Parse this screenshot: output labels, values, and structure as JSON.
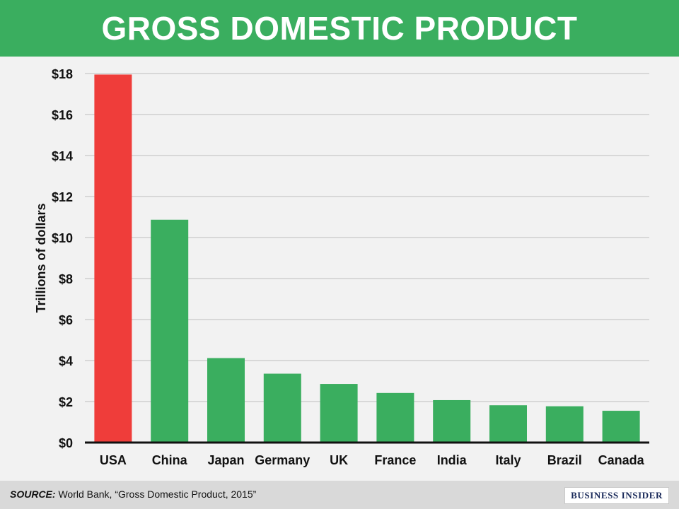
{
  "header": {
    "title": "GROSS DOMESTIC PRODUCT"
  },
  "chart_data": {
    "type": "bar",
    "title": "GROSS DOMESTIC PRODUCT",
    "xlabel": "",
    "ylabel": "Trillions of dollars",
    "categories": [
      "USA",
      "China",
      "Japan",
      "Germany",
      "UK",
      "France",
      "India",
      "Italy",
      "Brazil",
      "Canada"
    ],
    "values": [
      17.95,
      10.87,
      4.12,
      3.36,
      2.86,
      2.42,
      2.07,
      1.82,
      1.77,
      1.55
    ],
    "ylim": [
      0,
      18
    ],
    "yticks": [
      0,
      2,
      4,
      6,
      8,
      10,
      12,
      14,
      16,
      18
    ],
    "ytick_labels": [
      "$0",
      "$2",
      "$4",
      "$6",
      "$8",
      "$10",
      "$12",
      "$14",
      "$16",
      "$18"
    ],
    "grid": true,
    "colors": {
      "highlight": "#ef3d3a",
      "bar": "#3aae5f",
      "gridline": "#d0d0d0",
      "axis": "#111111"
    },
    "highlight_category": "USA"
  },
  "footer": {
    "source_label": "SOURCE:",
    "source_text": " World Bank, “Gross Domestic Product, 2015”",
    "logo": "BUSINESS INSIDER"
  }
}
